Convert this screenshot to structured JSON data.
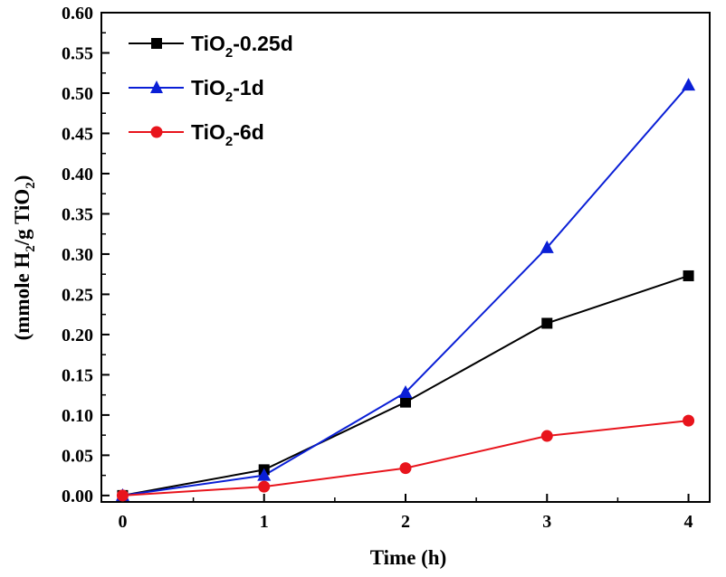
{
  "chart_data": {
    "type": "line",
    "title": "",
    "xlabel": "Time (h)",
    "ylabel": {
      "prefix": "(mmole H",
      "sub1": "2",
      "middle": "/g TiO",
      "sub2": "2",
      "suffix": ")"
    },
    "x": [
      0,
      1,
      2,
      3,
      4
    ],
    "xlim": [
      -0.15,
      4.15
    ],
    "ylim": [
      -0.008,
      0.6
    ],
    "xticks": [
      "0",
      "1",
      "2",
      "3",
      "4"
    ],
    "yticks": [
      "0.00",
      "0.05",
      "0.10",
      "0.15",
      "0.20",
      "0.25",
      "0.30",
      "0.35",
      "0.40",
      "0.45",
      "0.50",
      "0.55",
      "0.60"
    ],
    "legend_position": "top-left",
    "series": [
      {
        "id": "s025",
        "name_prefix": "TiO",
        "name_sub": "2",
        "name_suffix": "-0.25d",
        "color": "#000000",
        "marker": "square",
        "values": [
          0.0,
          0.032,
          0.116,
          0.214,
          0.273
        ]
      },
      {
        "id": "s1",
        "name_prefix": "TiO",
        "name_sub": "2",
        "name_suffix": "-1d",
        "color": "#0a1fd6",
        "marker": "triangle",
        "values": [
          0.0,
          0.025,
          0.128,
          0.308,
          0.51
        ]
      },
      {
        "id": "s6",
        "name_prefix": "TiO",
        "name_sub": "2",
        "name_suffix": "-6d",
        "color": "#e8141c",
        "marker": "circle",
        "values": [
          0.0,
          0.011,
          0.034,
          0.074,
          0.093
        ]
      }
    ]
  }
}
